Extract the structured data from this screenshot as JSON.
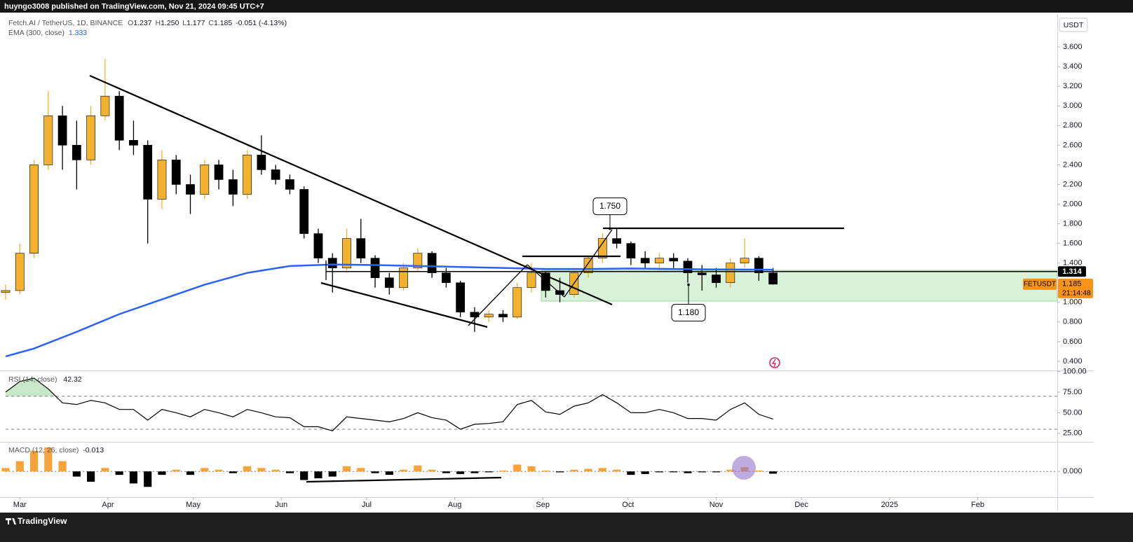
{
  "header": {
    "published": "huyngo3008 published on TradingView.com, Nov 21, 2024 09:45 UTC+7",
    "brand": "TradingView"
  },
  "currency_button": "USDT",
  "chart_data": [
    {
      "type": "candlestick",
      "title": "Fetch.AI / TetherUS, 1D, BINANCE",
      "ohlc_labels": [
        "O",
        "H",
        "L",
        "C"
      ],
      "last_bar": [
        {
          "value": 1.237,
          "label": "1.237"
        },
        {
          "value": 1.25,
          "label": "1.250"
        },
        {
          "value": 1.177,
          "label": "1.177"
        },
        {
          "value": 1.185,
          "label": "1.185"
        }
      ],
      "change": -0.051,
      "change_pct": {
        "value": -4.13,
        "label": "(-4.13%)"
      },
      "up_color": "#f2b230",
      "down_color": "#000000",
      "xlim": [
        -5,
        365
      ],
      "xticks": [
        {
          "value": 0,
          "label": "Mar"
        },
        {
          "value": 31,
          "label": "Apr"
        },
        {
          "value": 61,
          "label": "May"
        },
        {
          "value": 92,
          "label": "Jun"
        },
        {
          "value": 122,
          "label": "Jul"
        },
        {
          "value": 153,
          "label": "Aug"
        },
        {
          "value": 184,
          "label": "Sep"
        },
        {
          "value": 214,
          "label": "Oct"
        },
        {
          "value": 245,
          "label": "Nov"
        },
        {
          "value": 275,
          "label": "Dec"
        },
        {
          "value": 306,
          "label": "2025"
        },
        {
          "value": 337,
          "label": "Feb"
        }
      ],
      "ylim": [
        0.314,
        3.9
      ],
      "yticks": [
        {
          "value": 0.4,
          "label": "0.400"
        },
        {
          "value": 0.6,
          "label": "0.600"
        },
        {
          "value": 0.8,
          "label": "0.800"
        },
        {
          "value": 1.0,
          "label": "1.000"
        },
        {
          "value": 1.4,
          "label": "1.400"
        },
        {
          "value": 1.6,
          "label": "1.600"
        },
        {
          "value": 1.8,
          "label": "1.800"
        },
        {
          "value": 2.0,
          "label": "2.000"
        },
        {
          "value": 2.2,
          "label": "2.200"
        },
        {
          "value": 2.4,
          "label": "2.400"
        },
        {
          "value": 2.6,
          "label": "2.600"
        },
        {
          "value": 2.8,
          "label": "2.800"
        },
        {
          "value": 3.0,
          "label": "3.000"
        },
        {
          "value": 3.2,
          "label": "3.200"
        },
        {
          "value": 3.4,
          "label": "3.400"
        },
        {
          "value": 3.6,
          "label": "3.600"
        }
      ],
      "x": [
        -5,
        0,
        5,
        10,
        15,
        20,
        25,
        30,
        35,
        40,
        45,
        50,
        55,
        60,
        65,
        70,
        75,
        80,
        85,
        90,
        95,
        100,
        105,
        110,
        115,
        120,
        125,
        130,
        135,
        140,
        145,
        150,
        155,
        160,
        165,
        170,
        175,
        180,
        185,
        190,
        195,
        200,
        205,
        210,
        215,
        220,
        225,
        230,
        235,
        240,
        245,
        250,
        255,
        260,
        265
      ],
      "open": [
        1.1,
        1.12,
        1.5,
        2.4,
        2.9,
        2.6,
        2.45,
        2.9,
        3.1,
        2.65,
        2.6,
        2.05,
        2.45,
        2.2,
        2.1,
        2.4,
        2.25,
        2.1,
        2.5,
        2.35,
        2.25,
        2.15,
        1.7,
        1.45,
        1.35,
        1.65,
        1.45,
        1.25,
        1.15,
        1.35,
        1.5,
        1.3,
        1.2,
        0.9,
        0.85,
        0.88,
        0.85,
        1.15,
        1.3,
        1.12,
        1.08,
        1.3,
        1.45,
        1.65,
        1.6,
        1.45,
        1.4,
        1.45,
        1.42,
        1.3,
        1.28,
        1.2,
        1.4,
        1.45,
        1.3
      ],
      "high": [
        1.18,
        1.6,
        2.45,
        3.15,
        3.0,
        2.85,
        3.0,
        3.48,
        3.15,
        2.85,
        2.65,
        2.55,
        2.5,
        2.3,
        2.45,
        2.45,
        2.35,
        2.55,
        2.7,
        2.4,
        2.3,
        2.18,
        1.75,
        1.5,
        1.75,
        1.85,
        1.48,
        1.3,
        1.4,
        1.55,
        1.52,
        1.35,
        1.22,
        0.95,
        0.92,
        0.92,
        1.2,
        1.4,
        1.32,
        1.25,
        1.35,
        1.48,
        1.7,
        1.75,
        1.62,
        1.52,
        1.5,
        1.5,
        1.45,
        1.38,
        1.35,
        1.45,
        1.65,
        1.47,
        1.35
      ],
      "low": [
        1.03,
        1.08,
        1.45,
        2.35,
        2.35,
        2.15,
        2.4,
        2.85,
        2.55,
        2.5,
        1.6,
        1.95,
        2.1,
        1.9,
        2.05,
        2.15,
        1.98,
        2.05,
        2.3,
        2.2,
        2.1,
        1.65,
        1.4,
        1.1,
        1.3,
        1.4,
        1.15,
        1.08,
        1.12,
        1.32,
        1.25,
        1.15,
        0.85,
        0.7,
        0.8,
        0.8,
        0.83,
        1.1,
        1.05,
        1.0,
        1.05,
        1.25,
        1.4,
        1.55,
        1.38,
        1.35,
        1.32,
        1.35,
        1.2,
        1.12,
        1.15,
        1.15,
        1.35,
        1.22,
        1.18
      ],
      "close": [
        1.12,
        1.5,
        2.4,
        2.9,
        2.6,
        2.45,
        2.9,
        3.1,
        2.65,
        2.6,
        2.05,
        2.45,
        2.2,
        2.1,
        2.4,
        2.25,
        2.1,
        2.5,
        2.35,
        2.25,
        2.15,
        1.7,
        1.45,
        1.35,
        1.65,
        1.45,
        1.25,
        1.15,
        1.35,
        1.5,
        1.3,
        1.2,
        0.9,
        0.85,
        0.88,
        0.85,
        1.15,
        1.3,
        1.12,
        1.08,
        1.3,
        1.45,
        1.65,
        1.6,
        1.45,
        1.4,
        1.45,
        1.42,
        1.3,
        1.28,
        1.2,
        1.4,
        1.45,
        1.3,
        1.185
      ],
      "ema": {
        "name": "EMA (300, close)",
        "color": "#2962ff",
        "last": 1.333,
        "x": [
          -5,
          5,
          20,
          35,
          50,
          65,
          80,
          95,
          110,
          125,
          140,
          155,
          170,
          185,
          200,
          215,
          230,
          245,
          265
        ],
        "values": [
          0.45,
          0.53,
          0.7,
          0.88,
          1.03,
          1.18,
          1.3,
          1.37,
          1.385,
          1.38,
          1.37,
          1.36,
          1.35,
          1.34,
          1.34,
          1.345,
          1.34,
          1.335,
          1.333
        ]
      },
      "hline": {
        "value": 1.314,
        "label": "1.314"
      },
      "price_tag": {
        "symbol": "FETUSDT",
        "price": {
          "value": 1.185,
          "label": "1.185"
        },
        "countdown": "21:14:48",
        "color": "#f7931a"
      },
      "annotations": [
        {
          "value": 1.75,
          "label": "1.750"
        },
        {
          "value": 1.18,
          "label": "1.180"
        }
      ]
    },
    {
      "type": "line",
      "title": "RSI (14, close)",
      "last": 42.32,
      "color": "#000000",
      "ylim": [
        15.5,
        100.5
      ],
      "yticks": [
        {
          "value": 100,
          "label": "100.00"
        },
        {
          "value": 75,
          "label": "75.00"
        },
        {
          "value": 50,
          "label": "50.00"
        },
        {
          "value": 25,
          "label": "25.00"
        }
      ],
      "bands": [
        70,
        30
      ],
      "x": [
        -5,
        0,
        5,
        10,
        15,
        20,
        25,
        30,
        35,
        40,
        45,
        50,
        55,
        60,
        65,
        70,
        75,
        80,
        85,
        90,
        95,
        100,
        105,
        110,
        115,
        120,
        125,
        130,
        135,
        140,
        145,
        150,
        155,
        160,
        165,
        170,
        175,
        180,
        185,
        190,
        195,
        200,
        205,
        210,
        215,
        220,
        225,
        230,
        235,
        240,
        245,
        250,
        255,
        260,
        265
      ],
      "values": [
        75.1,
        87.9,
        92,
        79,
        62,
        60,
        65,
        62,
        54,
        54,
        41,
        54,
        50,
        45,
        54,
        50,
        45,
        54,
        50,
        45,
        44,
        33,
        33,
        28,
        45,
        43,
        41,
        39,
        43,
        50,
        44,
        41,
        30,
        36,
        37,
        39,
        60,
        65,
        51,
        48,
        58,
        62,
        72,
        62,
        50,
        50,
        54,
        50,
        43,
        43,
        41,
        54,
        62,
        48,
        42.32
      ]
    },
    {
      "type": "bar",
      "title": "MACD (12, 26, close)",
      "last": -0.013,
      "pos_color": "#f7a33a",
      "neg_color": "#000000",
      "ylim": [
        -0.15,
        0.16
      ],
      "yticks": [
        {
          "value": 0,
          "label": "0.000"
        }
      ],
      "x": [
        -5,
        0,
        5,
        10,
        15,
        20,
        25,
        30,
        35,
        40,
        45,
        50,
        55,
        60,
        65,
        70,
        75,
        80,
        85,
        90,
        95,
        100,
        105,
        110,
        115,
        120,
        125,
        130,
        135,
        140,
        145,
        150,
        155,
        160,
        165,
        170,
        175,
        180,
        185,
        190,
        195,
        200,
        205,
        210,
        215,
        220,
        225,
        230,
        235,
        240,
        245,
        250,
        255,
        260,
        265
      ],
      "values": [
        0.02,
        0.06,
        0.12,
        0.14,
        0.06,
        -0.03,
        -0.06,
        0.02,
        -0.02,
        -0.07,
        -0.09,
        -0.02,
        0.01,
        -0.02,
        0.02,
        0.01,
        -0.01,
        0.03,
        0.02,
        0.01,
        -0.01,
        -0.05,
        -0.04,
        -0.03,
        0.03,
        0.02,
        -0.01,
        -0.02,
        0.01,
        0.035,
        0.01,
        -0.01,
        -0.015,
        -0.01,
        -0.005,
        0.005,
        0.04,
        0.03,
        0.005,
        -0.005,
        0.01,
        0.015,
        0.02,
        0.01,
        -0.02,
        -0.015,
        -0.005,
        -0.005,
        -0.01,
        -0.005,
        -0.005,
        0.01,
        0.025,
        0.005,
        -0.013
      ]
    }
  ]
}
